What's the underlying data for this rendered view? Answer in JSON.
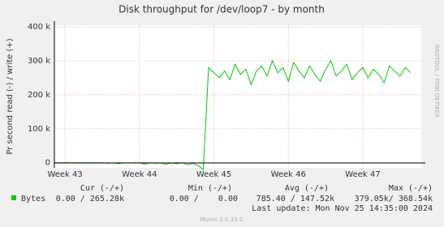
{
  "chart_data": {
    "type": "line",
    "title": "Disk throughput for /dev/loop7 - by month",
    "y_label": "Pr second read (-) / write (+)",
    "side_label": "RRDTOOL / TOBI OETIKER",
    "x": [
      -1,
      -0.5,
      0,
      0.5,
      1,
      1.5,
      2,
      2.5,
      3,
      3.5,
      4,
      4.5,
      5,
      5.5,
      6,
      6.5,
      7,
      7.5,
      8,
      8.5,
      9,
      9.5,
      10,
      10.5,
      11,
      11.5,
      12,
      12.5,
      13,
      13.5,
      14,
      14.5,
      15,
      15.5,
      16,
      16.5,
      17,
      17.5,
      18,
      18.5,
      19,
      19.5,
      20,
      20.5,
      21,
      21.5,
      22,
      22.5,
      23,
      23.5,
      24,
      24.5,
      25,
      25.5,
      26,
      26.5,
      27,
      27.5,
      28,
      28.5,
      29,
      29.5,
      30,
      30.5,
      31,
      31.5,
      32,
      32.5
    ],
    "series": [
      {
        "name": "Bytes",
        "color": "#00cc00",
        "values": [
          0,
          0,
          0,
          0,
          0,
          0,
          0,
          0,
          0,
          0,
          -2000,
          0,
          -3000,
          0,
          -1000,
          0,
          0,
          -4000,
          0,
          -2000,
          0,
          -5000,
          0,
          -3000,
          0,
          -6000,
          -2000,
          -8000,
          -20000,
          280000,
          265000,
          250000,
          270000,
          245000,
          290000,
          260000,
          275000,
          230000,
          270000,
          285000,
          255000,
          300000,
          265000,
          280000,
          240000,
          295000,
          270000,
          250000,
          285000,
          260000,
          240000,
          275000,
          300000,
          255000,
          270000,
          290000,
          245000,
          265000,
          280000,
          250000,
          275000,
          260000,
          235000,
          285000,
          270000,
          255000,
          280000,
          265000
        ]
      }
    ],
    "xlim": [
      -1,
      33.5
    ],
    "xticks": [
      {
        "value": 0,
        "label": "Week 43"
      },
      {
        "value": 7,
        "label": "Week 44"
      },
      {
        "value": 14,
        "label": "Week 45"
      },
      {
        "value": 21,
        "label": "Week 46"
      },
      {
        "value": 28,
        "label": "Week 47"
      }
    ],
    "ylim": [
      -15000,
      405000
    ],
    "yticks": [
      {
        "value": 0,
        "label": "0"
      },
      {
        "value": 100000,
        "label": "100 k"
      },
      {
        "value": 200000,
        "label": "200 k"
      },
      {
        "value": 300000,
        "label": "300 k"
      },
      {
        "value": 400000,
        "label": "400 k"
      }
    ],
    "grid": true,
    "legend_headers": [
      "Cur (-/+)",
      "Min (-/+)",
      "Avg (-/+)",
      "Max (-/+)"
    ],
    "legend_stats": [
      "0.00 / 265.28k",
      "0.00 /    0.00",
      "785.40 / 147.52k",
      "379.05k/ 368.54k"
    ],
    "last_update": "Last update: Mon Nov 25 14:35:00 2024",
    "footer": "Munin 2.0.33-1"
  }
}
